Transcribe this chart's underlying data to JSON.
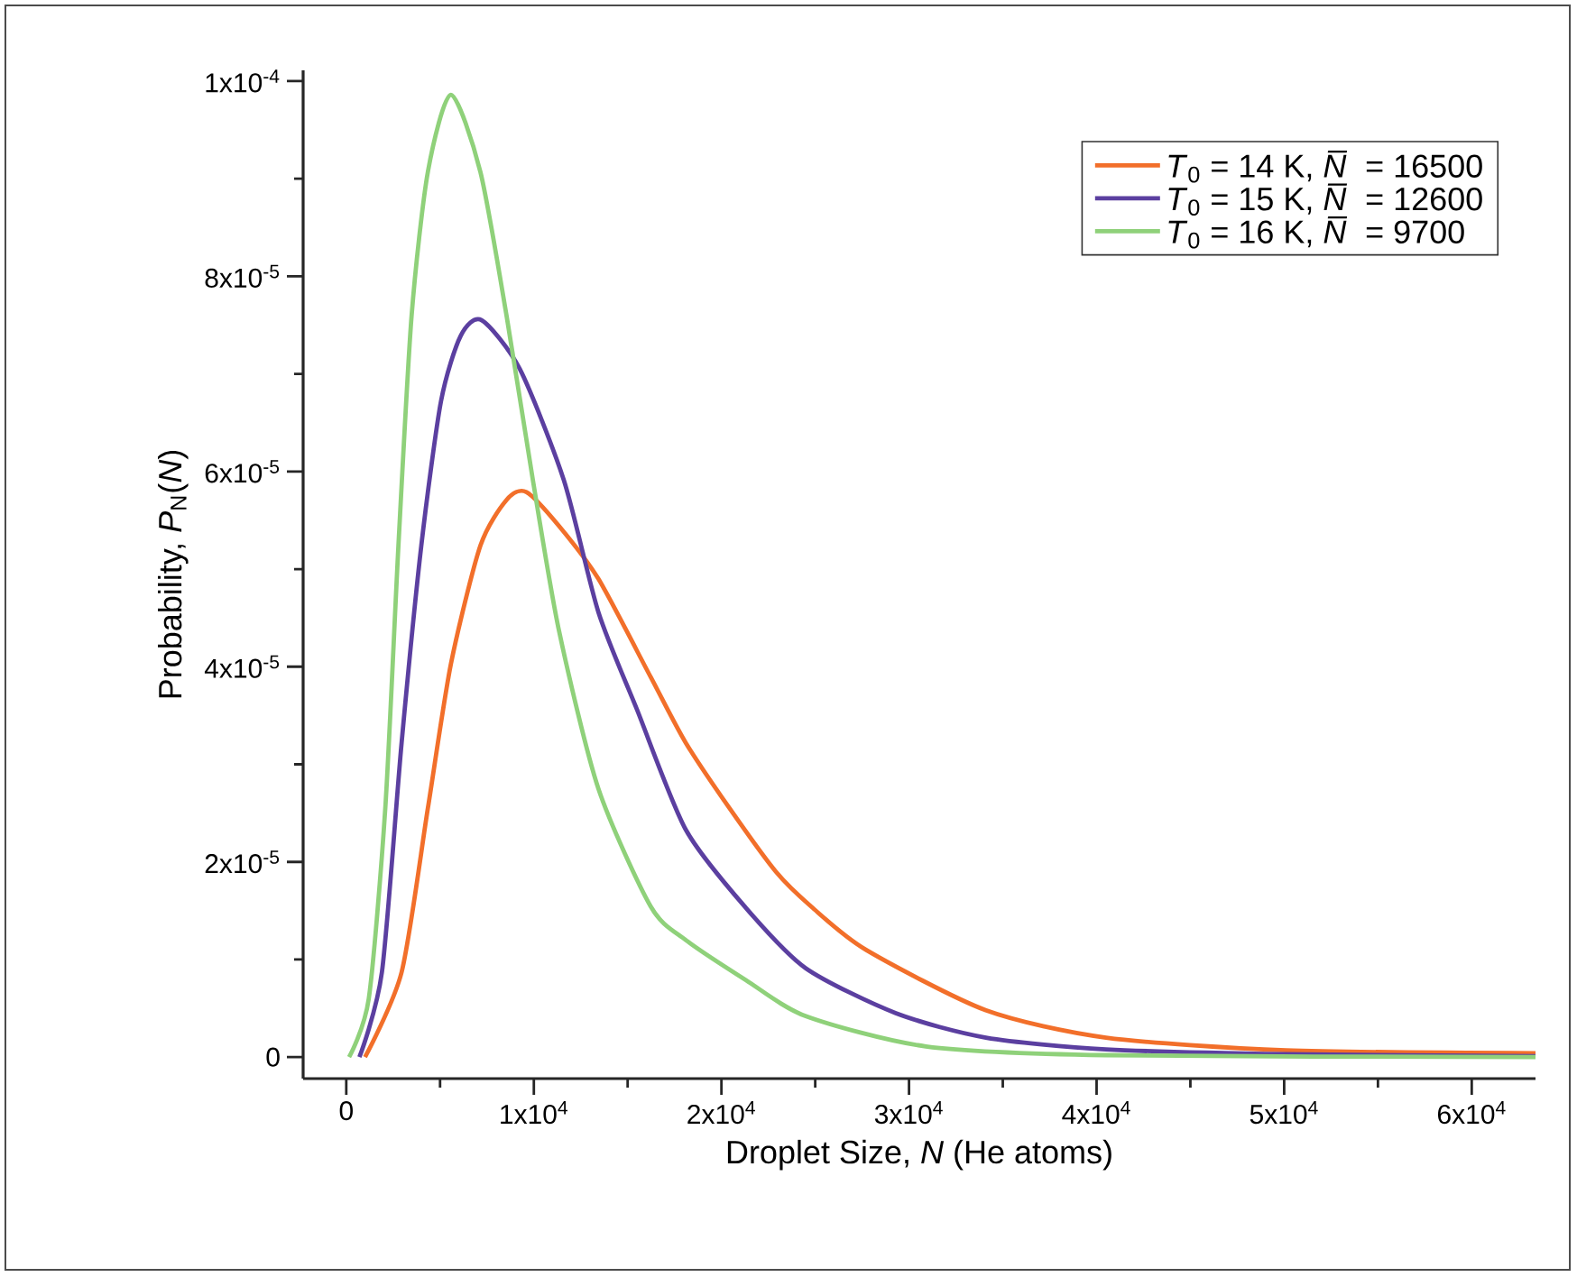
{
  "chart_data": {
    "type": "line",
    "xlabel": "Droplet Size, *N* (He atoms)",
    "ylabel": "Probability, *P*$_{N}$(*N*)",
    "xlim": [
      -2300,
      63400
    ],
    "ylim": [
      -2.2e-06,
      0.0001011
    ],
    "xticks": [
      0,
      {
        "value": 10000,
        "label": "1x10$^{4}$"
      },
      {
        "value": 20000,
        "label": "2x10$^{4}$"
      },
      {
        "value": 30000,
        "label": "3x10$^{4}$"
      },
      {
        "value": 40000,
        "label": "4x10$^{4}$"
      },
      {
        "value": 50000,
        "label": "5x10$^{4}$"
      },
      {
        "value": 60000,
        "label": "6x10$^{4}$"
      }
    ],
    "yticks": [
      0,
      {
        "value": 2e-05,
        "label": "2x10$^{-5}$"
      },
      {
        "value": 4e-05,
        "label": "4x10$^{-5}$"
      },
      {
        "value": 6e-05,
        "label": "6x10$^{-5}$"
      },
      {
        "value": 8e-05,
        "label": "8x10$^{-5}$"
      },
      {
        "value": 0.0001,
        "label": "1x10$^{-4}$"
      }
    ],
    "legend": "top right",
    "series": [
      {
        "name": "*T*$_{0}$ = 14 K, *N̅* = 16500",
        "color": "#f26f2a",
        "x": [
          1000,
          2950,
          4350,
          5580,
          7150,
          8550,
          9600,
          11350,
          13440,
          16240,
          18100,
          20430,
          22900,
          24800,
          27700,
          34100,
          40500,
          50100,
          63400
        ],
        "values": [
          0,
          8.7e-06,
          2.55e-05,
          4.03e-05,
          5.24e-05,
          5.71e-05,
          5.79e-05,
          5.44e-05,
          4.9e-05,
          3.89e-05,
          3.22e-05,
          2.55e-05,
          1.9e-05,
          1.54e-05,
          1.1e-05,
          4.8e-06,
          2e-06,
          7e-07,
          4e-07
        ]
      },
      {
        "name": "*T*$_{0}$ = 15 K, *N̅* = 12600",
        "color": "#5b3fa0",
        "x": [
          700,
          1900,
          2950,
          4000,
          5050,
          6100,
          7220,
          9250,
          11600,
          13440,
          15500,
          18100,
          21300,
          24500,
          29300,
          34100,
          40500,
          50100,
          63400
        ],
        "values": [
          0,
          8.7e-06,
          3.22e-05,
          5.24e-05,
          6.72e-05,
          7.39e-05,
          7.55e-05,
          7.05e-05,
          5.91e-05,
          4.56e-05,
          3.56e-05,
          2.33e-05,
          1.53e-05,
          9.1e-06,
          4.5e-06,
          2e-06,
          8e-07,
          3e-07,
          1e-07
        ]
      },
      {
        "name": "*T*$_{0}$ = 16 K, *N̅* = 9700",
        "color": "#8fd17a",
        "x": [
          150,
          1200,
          2080,
          2780,
          3480,
          4350,
          5580,
          7150,
          8550,
          9950,
          11350,
          13440,
          16240,
          18100,
          21300,
          24500,
          30900,
          40500,
          63400
        ],
        "values": [
          0,
          6e-06,
          2.55e-05,
          5.24e-05,
          7.59e-05,
          9.07e-05,
          9.86e-05,
          9.07e-05,
          7.59e-05,
          5.91e-05,
          4.36e-05,
          2.75e-05,
          1.54e-05,
          1.2e-05,
          7.9e-06,
          4.2e-06,
          1.1e-06,
          2e-07,
          0
        ]
      }
    ]
  }
}
